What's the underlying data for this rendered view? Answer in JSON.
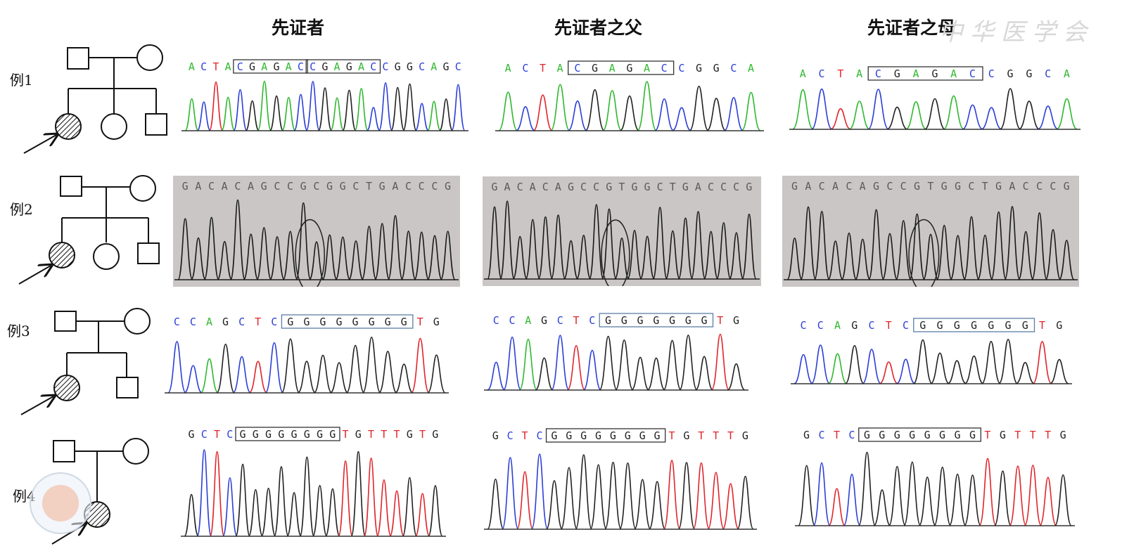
{
  "column_headers": [
    "先证者",
    "先证者之父",
    "先证者之母"
  ],
  "watermark_text": "中华医学会",
  "cases": [
    {
      "label": "例1",
      "panels": [
        {
          "sequence": "ACTACGAGACCGAGACCGGCAGC",
          "boxes": [
            [
              4,
              9
            ],
            [
              10,
              15
            ]
          ],
          "style": "color"
        },
        {
          "sequence": "ACTACGAGACCGGCA",
          "boxes": [
            [
              4,
              9
            ]
          ],
          "style": "color"
        },
        {
          "sequence": "ACTACGAGACCGGCA",
          "boxes": [
            [
              4,
              9
            ]
          ],
          "style": "color"
        }
      ]
    },
    {
      "label": "例2",
      "panels": [
        {
          "sequence": "GACACAGCCGCGGCTGACCCG",
          "boxes": [],
          "style": "gray"
        },
        {
          "sequence": "GACACAGCCGTGGCTGACCCG",
          "boxes": [],
          "style": "gray"
        },
        {
          "sequence": "GACACAGCCGTGGCTGACCCG",
          "boxes": [],
          "style": "gray"
        }
      ]
    },
    {
      "label": "例3",
      "panels": [
        {
          "sequence": "CCAGCTCGGGGGGGGTG",
          "boxes": [
            [
              7,
              14
            ]
          ],
          "style": "color"
        },
        {
          "sequence": "CCAGCTCGGGGGGGTG",
          "boxes": [
            [
              7,
              13
            ]
          ],
          "style": "color"
        },
        {
          "sequence": "CCAGCTCGGGGGGGTG",
          "boxes": [
            [
              7,
              13
            ]
          ],
          "style": "color"
        }
      ]
    },
    {
      "label": "例4",
      "panels": [
        {
          "sequence": "GCTCGGGGGGGGTGTTTGTG",
          "boxes": [
            [
              4,
              11
            ]
          ],
          "style": "color"
        },
        {
          "sequence": "GCTCGGGGGGGGTGTTTG",
          "boxes": [
            [
              4,
              11
            ]
          ],
          "style": "color"
        },
        {
          "sequence": "GCTCGGGGGGGGTGTTTG",
          "boxes": [
            [
              4,
              11
            ]
          ],
          "style": "color"
        }
      ]
    }
  ],
  "colors": {
    "A": "#2fb82f",
    "C": "#2c3fd6",
    "G": "#222222",
    "T": "#e0252b",
    "box": "#333333",
    "box_case3": "#5a7ea6"
  }
}
